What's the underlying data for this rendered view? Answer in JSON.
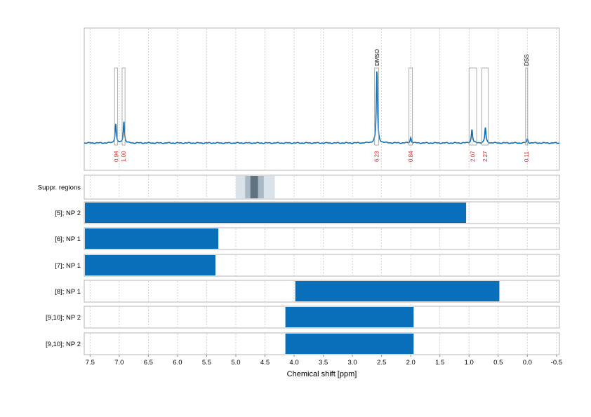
{
  "chart_data": {
    "type": "bar",
    "xlabel": "Chemical shift [ppm]",
    "xlim": [
      7.6,
      -0.55
    ],
    "x_ticks": [
      "7.5",
      "7.0",
      "6.5",
      "6.0",
      "5.5",
      "5.0",
      "4.5",
      "4.0",
      "3.5",
      "3.0",
      "2.5",
      "2.0",
      "1.5",
      "1.0",
      "0.5",
      "0.0",
      "-0.5"
    ],
    "spectrum": {
      "color": "#0a6fba",
      "baseline": 0.0,
      "peaks": [
        {
          "ppm": 7.06,
          "height": 0.25
        },
        {
          "ppm": 6.92,
          "height": 0.28
        },
        {
          "ppm": 2.58,
          "height": 0.95
        },
        {
          "ppm": 2.0,
          "height": 0.07
        },
        {
          "ppm": 0.95,
          "height": 0.18
        },
        {
          "ppm": 0.72,
          "height": 0.2
        },
        {
          "ppm": 0.0,
          "height": 0.05
        }
      ]
    },
    "integrals": [
      {
        "from": 7.08,
        "to": 7.03,
        "value": "0.94"
      },
      {
        "from": 6.95,
        "to": 6.9,
        "value": "1.00"
      },
      {
        "from": 2.62,
        "to": 2.55,
        "value": "6.23"
      },
      {
        "from": 2.03,
        "to": 1.97,
        "value": "0.84"
      },
      {
        "from": 1.0,
        "to": 0.87,
        "value": "2.07"
      },
      {
        "from": 0.78,
        "to": 0.67,
        "value": "2.27"
      },
      {
        "from": 0.03,
        "to": 0.0,
        "value": "0.11"
      }
    ],
    "peak_labels": [
      {
        "ppm": 2.58,
        "label": "DMSO"
      },
      {
        "ppm": 0.015,
        "label": "DSS"
      }
    ],
    "suppression": {
      "label": "Suppr. regions",
      "bands": [
        {
          "from": 5.0,
          "to": 4.33,
          "shade": "#dbe3ea"
        },
        {
          "from": 4.84,
          "to": 4.52,
          "shade": "#a9b9c6"
        },
        {
          "from": 4.75,
          "to": 4.62,
          "shade": "#5f7480"
        }
      ]
    },
    "rows": [
      {
        "label": "[5]; NP 2",
        "from": 7.6,
        "to": 1.05
      },
      {
        "label": "[6]; NP 1",
        "from": 7.6,
        "to": 5.3
      },
      {
        "label": "[7]; NP 1",
        "from": 7.6,
        "to": 5.35
      },
      {
        "label": "[8]; NP 1",
        "from": 3.98,
        "to": 0.48
      },
      {
        "label": "[9,10]; NP 2",
        "from": 4.15,
        "to": 1.95
      },
      {
        "label": "[9,10]; NP 2",
        "from": 4.15,
        "to": 1.95
      }
    ]
  }
}
